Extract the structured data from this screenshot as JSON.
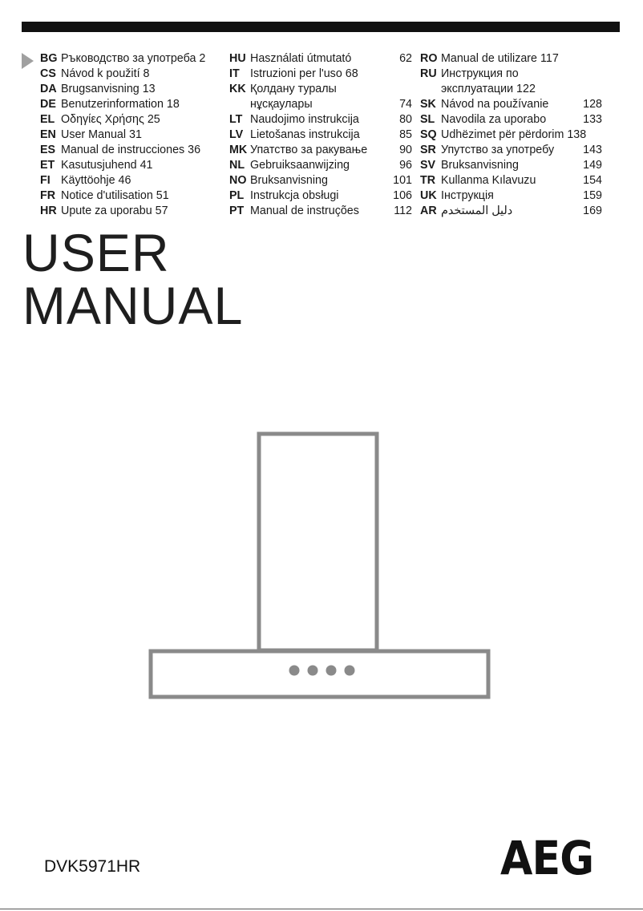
{
  "languages": {
    "columns": [
      [
        {
          "code": "BG",
          "lines": [
            "Ръководство за употреба 2"
          ],
          "page": ""
        },
        {
          "code": "CS",
          "lines": [
            "Návod k použití 8"
          ],
          "page": ""
        },
        {
          "code": "DA",
          "lines": [
            "Brugsanvisning 13"
          ],
          "page": ""
        },
        {
          "code": "DE",
          "lines": [
            "Benutzerinformation 18"
          ],
          "page": ""
        },
        {
          "code": "EL",
          "lines": [
            "Οδηγίες Χρήσης 25"
          ],
          "page": ""
        },
        {
          "code": "EN",
          "lines": [
            "User Manual 31"
          ],
          "page": ""
        },
        {
          "code": "ES",
          "lines": [
            "Manual de instrucciones 36"
          ],
          "page": ""
        },
        {
          "code": "ET",
          "lines": [
            "Kasutusjuhend 41"
          ],
          "page": ""
        },
        {
          "code": "FI",
          "lines": [
            "Käyttöohje 46"
          ],
          "page": ""
        },
        {
          "code": "FR",
          "lines": [
            "Notice d'utilisation 51"
          ],
          "page": ""
        },
        {
          "code": "HR",
          "lines": [
            "Upute za uporabu 57"
          ],
          "page": ""
        }
      ],
      [
        {
          "code": "HU",
          "lines": [
            "Használati útmutató"
          ],
          "page": "62"
        },
        {
          "code": "IT",
          "lines": [
            "Istruzioni per l'uso 68"
          ],
          "page": ""
        },
        {
          "code": "KK",
          "lines": [
            "Қолдану туралы",
            "нұсқаулары"
          ],
          "page": "74"
        },
        {
          "code": "LT",
          "lines": [
            "Naudojimo instrukcija"
          ],
          "page": "80"
        },
        {
          "code": "LV",
          "lines": [
            "Lietošanas instrukcija"
          ],
          "page": "85"
        },
        {
          "code": "MK",
          "lines": [
            "Упатство за ракување"
          ],
          "page": "90"
        },
        {
          "code": "NL",
          "lines": [
            "Gebruiksaanwijzing"
          ],
          "page": "96"
        },
        {
          "code": "NO",
          "lines": [
            "Bruksanvisning"
          ],
          "page": "101"
        },
        {
          "code": "PL",
          "lines": [
            "Instrukcja obsługi"
          ],
          "page": "106"
        },
        {
          "code": "PT",
          "lines": [
            "Manual de instruções"
          ],
          "page": "112"
        }
      ],
      [
        {
          "code": "RO",
          "lines": [
            "Manual de utilizare 117"
          ],
          "page": ""
        },
        {
          "code": "RU",
          "lines": [
            "Инструкция по",
            "эксплуатации 122"
          ],
          "page": ""
        },
        {
          "code": "SK",
          "lines": [
            "Návod na používanie"
          ],
          "page": "128"
        },
        {
          "code": "SL",
          "lines": [
            "Navodila za uporabo"
          ],
          "page": "133"
        },
        {
          "code": "SQ",
          "lines": [
            "Udhëzimet për përdorim 138"
          ],
          "page": ""
        },
        {
          "code": "SR",
          "lines": [
            "Упутство за употребу"
          ],
          "page": "143"
        },
        {
          "code": "SV",
          "lines": [
            "Bruksanvisning"
          ],
          "page": "149"
        },
        {
          "code": "TR",
          "lines": [
            "Kullanma Kılavuzu"
          ],
          "page": "154"
        },
        {
          "code": "UK",
          "lines": [
            "Інструкція"
          ],
          "page": "159"
        },
        {
          "code": "AR",
          "lines": [
            "دليل المستخدم"
          ],
          "page": "169"
        }
      ]
    ]
  },
  "heading": {
    "line1": "USER",
    "line2": "MANUAL"
  },
  "model": "DVK5971HR",
  "brand": "AEG",
  "icons": {
    "pointer": "triangle-arrow-icon",
    "product": "chimney-hood-illustration"
  },
  "colors": {
    "bar": "#111111",
    "illustration": "#8a8a8a",
    "arrow": "#a0a0a0"
  }
}
